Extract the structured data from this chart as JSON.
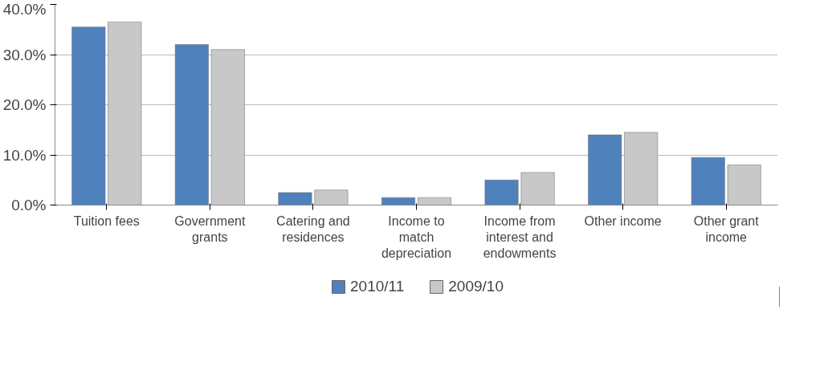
{
  "chart_data": {
    "type": "bar",
    "categories": [
      "Tuition fees",
      "Government grants",
      "Catering and residences",
      "Income to match depreciation",
      "Income from interest and endowments",
      "Other income",
      "Other grant income"
    ],
    "series": [
      {
        "name": "2010/11",
        "color": "#4f81bd",
        "values": [
          35.5,
          32,
          2.5,
          1.5,
          5,
          14,
          9.5
        ]
      },
      {
        "name": "2009/10",
        "color": "#c8c8c8",
        "values": [
          36.5,
          31,
          3,
          1.5,
          6.5,
          14.5,
          8
        ]
      }
    ],
    "ylim": [
      0,
      40
    ],
    "yticks": [
      {
        "value": 0,
        "label": "0.0%"
      },
      {
        "value": 10,
        "label": "10.0%"
      },
      {
        "value": 20,
        "label": "20.0%"
      },
      {
        "value": 30,
        "label": "30.0%"
      },
      {
        "value": 40,
        "label": "40.0%"
      }
    ],
    "grid": "y",
    "legend": "bottom"
  }
}
